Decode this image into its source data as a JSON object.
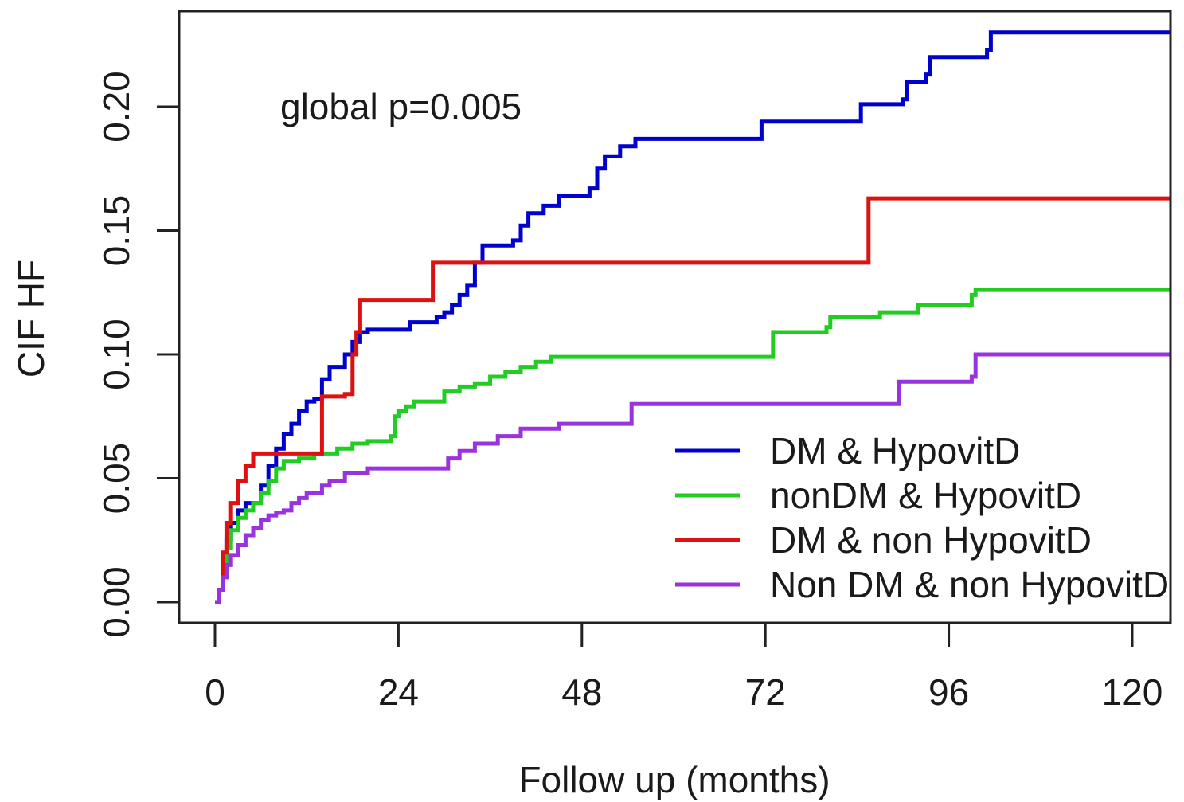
{
  "chart_data": {
    "type": "line",
    "step": true,
    "xlabel": "Follow up (months)",
    "ylabel": "CIF HF",
    "xlim": [
      -3,
      129
    ],
    "ylim": [
      -0.008,
      0.237
    ],
    "x_ticks": [
      0,
      24,
      48,
      72,
      96,
      120
    ],
    "x_tick_labels": [
      "0",
      "24",
      "48",
      "72",
      "96",
      "120"
    ],
    "y_ticks": [
      0.0,
      0.05,
      0.1,
      0.15,
      0.2
    ],
    "y_tick_labels": [
      "0.00",
      "0.05",
      "0.10",
      "0.15",
      "0.20"
    ],
    "annotation": "global p=0.005",
    "legend_position": "bottom-right",
    "grid": false,
    "series": [
      {
        "name": "DM & HypovitD",
        "color": "#0000cc",
        "points": [
          [
            0,
            0
          ],
          [
            0.5,
            0.005
          ],
          [
            1,
            0.012
          ],
          [
            1.5,
            0.025
          ],
          [
            2,
            0.032
          ],
          [
            3,
            0.037
          ],
          [
            4,
            0.04
          ],
          [
            5,
            0.04
          ],
          [
            6,
            0.047
          ],
          [
            7,
            0.055
          ],
          [
            8,
            0.062
          ],
          [
            9,
            0.068
          ],
          [
            10,
            0.072
          ],
          [
            11,
            0.077
          ],
          [
            12,
            0.081
          ],
          [
            13,
            0.082
          ],
          [
            14,
            0.09
          ],
          [
            15,
            0.095
          ],
          [
            16,
            0.095
          ],
          [
            17,
            0.1
          ],
          [
            18,
            0.105
          ],
          [
            19,
            0.109
          ],
          [
            20,
            0.11
          ],
          [
            25,
            0.11
          ],
          [
            25.5,
            0.113
          ],
          [
            29,
            0.115
          ],
          [
            30,
            0.117
          ],
          [
            31,
            0.12
          ],
          [
            32,
            0.124
          ],
          [
            33,
            0.128
          ],
          [
            34,
            0.137
          ],
          [
            35,
            0.144
          ],
          [
            39,
            0.146
          ],
          [
            40,
            0.152
          ],
          [
            41,
            0.157
          ],
          [
            43,
            0.16
          ],
          [
            45,
            0.164
          ],
          [
            49,
            0.167
          ],
          [
            50,
            0.175
          ],
          [
            51,
            0.18
          ],
          [
            53,
            0.184
          ],
          [
            55,
            0.187
          ],
          [
            71,
            0.187
          ],
          [
            71.5,
            0.194
          ],
          [
            84,
            0.194
          ],
          [
            84.5,
            0.201
          ],
          [
            90,
            0.203
          ],
          [
            90.5,
            0.21
          ],
          [
            93,
            0.213
          ],
          [
            93.5,
            0.22
          ],
          [
            101,
            0.223
          ],
          [
            101.5,
            0.23
          ],
          [
            125,
            0.23
          ]
        ]
      },
      {
        "name": "nonDM & HypovitD",
        "color": "#22cc22",
        "points": [
          [
            0,
            0
          ],
          [
            0.5,
            0.005
          ],
          [
            1,
            0.01
          ],
          [
            1.5,
            0.022
          ],
          [
            2,
            0.029
          ],
          [
            3,
            0.034
          ],
          [
            4,
            0.037
          ],
          [
            5,
            0.04
          ],
          [
            6,
            0.044
          ],
          [
            7,
            0.049
          ],
          [
            8,
            0.054
          ],
          [
            9,
            0.057
          ],
          [
            10,
            0.057
          ],
          [
            11,
            0.058
          ],
          [
            12,
            0.058
          ],
          [
            13,
            0.06
          ],
          [
            16,
            0.062
          ],
          [
            18,
            0.064
          ],
          [
            20,
            0.065
          ],
          [
            23,
            0.067
          ],
          [
            23.5,
            0.075
          ],
          [
            24,
            0.077
          ],
          [
            25,
            0.079
          ],
          [
            26,
            0.081
          ],
          [
            29,
            0.081
          ],
          [
            30,
            0.085
          ],
          [
            32,
            0.087
          ],
          [
            34,
            0.088
          ],
          [
            36,
            0.091
          ],
          [
            38,
            0.093
          ],
          [
            40,
            0.095
          ],
          [
            42,
            0.097
          ],
          [
            44,
            0.099
          ],
          [
            72,
            0.099
          ],
          [
            73,
            0.109
          ],
          [
            80,
            0.111
          ],
          [
            80.5,
            0.115
          ],
          [
            87,
            0.117
          ],
          [
            92,
            0.12
          ],
          [
            99,
            0.124
          ],
          [
            99.5,
            0.126
          ],
          [
            125,
            0.126
          ]
        ]
      },
      {
        "name": "DM & non HypovitD",
        "color": "#dd1111",
        "points": [
          [
            0,
            0
          ],
          [
            0.5,
            0.005
          ],
          [
            1,
            0.02
          ],
          [
            1.5,
            0.032
          ],
          [
            2,
            0.04
          ],
          [
            3,
            0.049
          ],
          [
            4,
            0.055
          ],
          [
            5,
            0.06
          ],
          [
            14,
            0.06
          ],
          [
            14,
            0.083
          ],
          [
            17,
            0.084
          ],
          [
            18,
            0.1
          ],
          [
            18.5,
            0.109
          ],
          [
            19,
            0.122
          ],
          [
            28,
            0.122
          ],
          [
            28.5,
            0.137
          ],
          [
            85,
            0.137
          ],
          [
            85.5,
            0.163
          ],
          [
            125,
            0.163
          ]
        ]
      },
      {
        "name": "Non DM & non HypovitD",
        "color": "#9933dd",
        "points": [
          [
            0,
            0
          ],
          [
            0.5,
            0.005
          ],
          [
            1,
            0.01
          ],
          [
            1.5,
            0.015
          ],
          [
            2,
            0.019
          ],
          [
            3,
            0.023
          ],
          [
            4,
            0.027
          ],
          [
            5,
            0.03
          ],
          [
            6,
            0.033
          ],
          [
            7,
            0.035
          ],
          [
            8,
            0.036
          ],
          [
            9,
            0.037
          ],
          [
            10,
            0.04
          ],
          [
            11,
            0.042
          ],
          [
            12,
            0.044
          ],
          [
            14,
            0.047
          ],
          [
            15,
            0.049
          ],
          [
            17,
            0.052
          ],
          [
            20,
            0.054
          ],
          [
            30,
            0.054
          ],
          [
            30.5,
            0.058
          ],
          [
            32,
            0.061
          ],
          [
            34,
            0.064
          ],
          [
            37,
            0.067
          ],
          [
            40,
            0.07
          ],
          [
            45,
            0.072
          ],
          [
            54,
            0.072
          ],
          [
            54.5,
            0.08
          ],
          [
            89,
            0.08
          ],
          [
            89.5,
            0.089
          ],
          [
            99,
            0.091
          ],
          [
            99.5,
            0.1
          ],
          [
            125,
            0.1
          ]
        ]
      }
    ]
  }
}
